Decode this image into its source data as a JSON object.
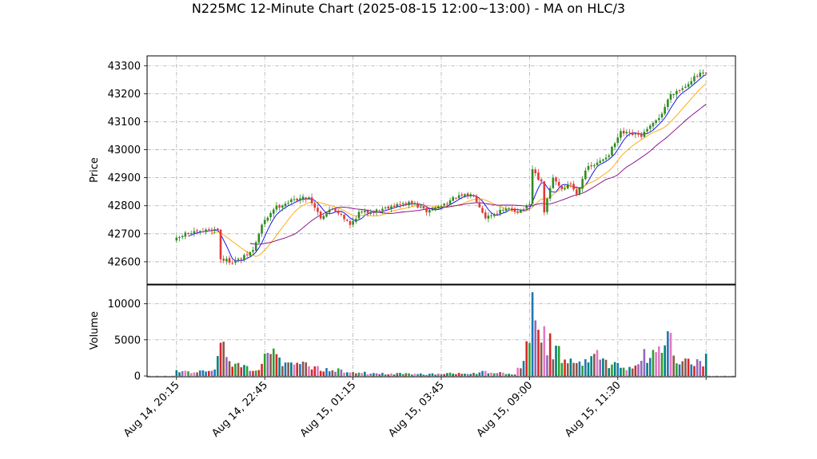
{
  "chart_data": {
    "type": "candlestick",
    "title": "N225MC 12-Minute Chart (2025-08-15 12:00~13:00) - MA on HLC/3",
    "price_panel": {
      "ylabel": "Price",
      "ylim": [
        42520,
        43335
      ],
      "yticks": [
        42600,
        42700,
        42800,
        42900,
        43000,
        43100,
        43200,
        43300
      ],
      "grid": true
    },
    "volume_panel": {
      "ylabel": "Volume",
      "ylim": [
        0,
        12600
      ],
      "yticks": [
        0,
        5000,
        10000
      ],
      "grid": true
    },
    "xlim": [
      -10,
      190
    ],
    "xticks": [
      {
        "pos": 0,
        "label": "Aug 14, 20:15"
      },
      {
        "pos": 30,
        "label": "Aug 14, 22:45"
      },
      {
        "pos": 60,
        "label": "Aug 15, 01:15"
      },
      {
        "pos": 90,
        "label": "Aug 15, 03:45"
      },
      {
        "pos": 120,
        "label": "Aug 15, 09:00"
      },
      {
        "pos": 150,
        "label": "Aug 15, 11:30"
      },
      {
        "pos": 180,
        "label": ""
      }
    ],
    "colors": {
      "up": "#2e8b22",
      "down": "#e03a3a",
      "ma_fast": "#0000ee",
      "ma_mid": "#ffa500",
      "ma_slow": "#800080",
      "volume": [
        "#1f77b4",
        "#2ca02c",
        "#d62728",
        "#9467bd",
        "#8c564b",
        "#e377c2",
        "#008080"
      ],
      "grid": "#b0b0b0"
    },
    "close_anchors": [
      [
        0,
        42680
      ],
      [
        3,
        42700
      ],
      [
        8,
        42705
      ],
      [
        11,
        42715
      ],
      [
        14,
        42715
      ],
      [
        15,
        42610
      ],
      [
        19,
        42600
      ],
      [
        22,
        42610
      ],
      [
        26,
        42640
      ],
      [
        29,
        42730
      ],
      [
        33,
        42790
      ],
      [
        37,
        42810
      ],
      [
        41,
        42825
      ],
      [
        45,
        42830
      ],
      [
        49,
        42760
      ],
      [
        53,
        42790
      ],
      [
        56,
        42770
      ],
      [
        59,
        42730
      ],
      [
        62,
        42775
      ],
      [
        67,
        42780
      ],
      [
        73,
        42800
      ],
      [
        80,
        42810
      ],
      [
        85,
        42780
      ],
      [
        90,
        42800
      ],
      [
        95,
        42830
      ],
      [
        101,
        42840
      ],
      [
        105,
        42760
      ],
      [
        110,
        42780
      ],
      [
        114,
        42790
      ],
      [
        116,
        42780
      ],
      [
        120,
        42800
      ],
      [
        121,
        42930
      ],
      [
        124,
        42880
      ],
      [
        125,
        42780
      ],
      [
        128,
        42900
      ],
      [
        131,
        42860
      ],
      [
        134,
        42880
      ],
      [
        136,
        42840
      ],
      [
        139,
        42930
      ],
      [
        143,
        42950
      ],
      [
        147,
        42985
      ],
      [
        151,
        43060
      ],
      [
        154,
        43055
      ],
      [
        158,
        43050
      ],
      [
        162,
        43090
      ],
      [
        165,
        43130
      ],
      [
        168,
        43200
      ],
      [
        172,
        43220
      ],
      [
        175,
        43250
      ],
      [
        178,
        43270
      ],
      [
        180,
        43270
      ]
    ],
    "volume_anchors": [
      [
        0,
        700
      ],
      [
        4,
        450
      ],
      [
        8,
        600
      ],
      [
        11,
        800
      ],
      [
        13,
        900
      ],
      [
        15,
        4600
      ],
      [
        17,
        2500
      ],
      [
        20,
        1500
      ],
      [
        24,
        1000
      ],
      [
        28,
        1200
      ],
      [
        30,
        3000
      ],
      [
        33,
        2500
      ],
      [
        35,
        1800
      ],
      [
        38,
        1300
      ],
      [
        42,
        1500
      ],
      [
        45,
        1200
      ],
      [
        50,
        800
      ],
      [
        55,
        900
      ],
      [
        60,
        700
      ],
      [
        65,
        400
      ],
      [
        75,
        300
      ],
      [
        85,
        250
      ],
      [
        95,
        350
      ],
      [
        105,
        500
      ],
      [
        115,
        300
      ],
      [
        118,
        2500
      ],
      [
        119,
        4800
      ],
      [
        121,
        11600
      ],
      [
        122,
        6200
      ],
      [
        124,
        5300
      ],
      [
        126,
        4200
      ],
      [
        128,
        3500
      ],
      [
        132,
        2800
      ],
      [
        136,
        2200
      ],
      [
        140,
        1800
      ],
      [
        143,
        2400
      ],
      [
        147,
        1300
      ],
      [
        150,
        1500
      ],
      [
        153,
        900
      ],
      [
        156,
        1500
      ],
      [
        158,
        2500
      ],
      [
        162,
        3200
      ],
      [
        165,
        2800
      ],
      [
        167,
        6300
      ],
      [
        169,
        2400
      ],
      [
        172,
        1800
      ],
      [
        175,
        2200
      ],
      [
        178,
        2000
      ],
      [
        180,
        2600
      ]
    ],
    "volume_spikes": [
      [
        15,
        4600
      ],
      [
        30,
        3100
      ],
      [
        31,
        3200
      ],
      [
        33,
        3800
      ],
      [
        119,
        4800
      ],
      [
        121,
        11600
      ],
      [
        123,
        6400
      ],
      [
        125,
        6900
      ],
      [
        127,
        5900
      ],
      [
        129,
        4200
      ],
      [
        143,
        3600
      ],
      [
        163,
        3300
      ],
      [
        167,
        6200
      ],
      [
        180,
        3100
      ]
    ],
    "ma_periods": [
      5,
      13,
      26
    ]
  }
}
